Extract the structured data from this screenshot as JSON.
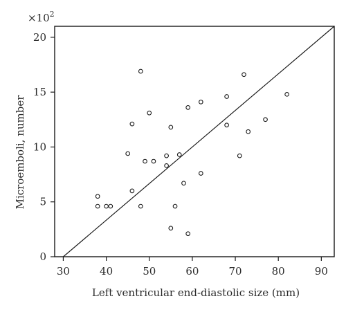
{
  "chart_data": {
    "type": "scatter",
    "xlabel": "Left ventricular end-diastolic size (mm)",
    "ylabel": "Microemboli, number",
    "y_multiplier": "×10",
    "y_multiplier_exp": "2",
    "xlim": [
      28,
      93
    ],
    "ylim": [
      0,
      21
    ],
    "xticks": [
      30,
      40,
      50,
      60,
      70,
      80,
      90
    ],
    "yticks": [
      0,
      5,
      10,
      15,
      20
    ],
    "points": [
      {
        "x": 38,
        "y": 5.5
      },
      {
        "x": 38,
        "y": 4.6
      },
      {
        "x": 40,
        "y": 4.6
      },
      {
        "x": 41,
        "y": 4.6
      },
      {
        "x": 45,
        "y": 9.4
      },
      {
        "x": 46,
        "y": 12.1
      },
      {
        "x": 46,
        "y": 6.0
      },
      {
        "x": 48,
        "y": 16.9
      },
      {
        "x": 48,
        "y": 4.6
      },
      {
        "x": 49,
        "y": 8.7
      },
      {
        "x": 50,
        "y": 13.1
      },
      {
        "x": 51,
        "y": 8.7
      },
      {
        "x": 54,
        "y": 9.2
      },
      {
        "x": 54,
        "y": 8.3
      },
      {
        "x": 55,
        "y": 11.8
      },
      {
        "x": 55,
        "y": 2.6
      },
      {
        "x": 56,
        "y": 4.6
      },
      {
        "x": 57,
        "y": 9.3
      },
      {
        "x": 58,
        "y": 6.7
      },
      {
        "x": 59,
        "y": 13.6
      },
      {
        "x": 59,
        "y": 2.1
      },
      {
        "x": 62,
        "y": 14.1
      },
      {
        "x": 62,
        "y": 7.6
      },
      {
        "x": 68,
        "y": 14.6
      },
      {
        "x": 68,
        "y": 12.0
      },
      {
        "x": 71,
        "y": 9.2
      },
      {
        "x": 72,
        "y": 16.6
      },
      {
        "x": 73,
        "y": 11.4
      },
      {
        "x": 77,
        "y": 12.5
      },
      {
        "x": 82,
        "y": 14.8
      }
    ],
    "regression_line": {
      "x": [
        30,
        93
      ],
      "y": [
        0,
        21
      ]
    },
    "grid": false,
    "legend": "none"
  }
}
